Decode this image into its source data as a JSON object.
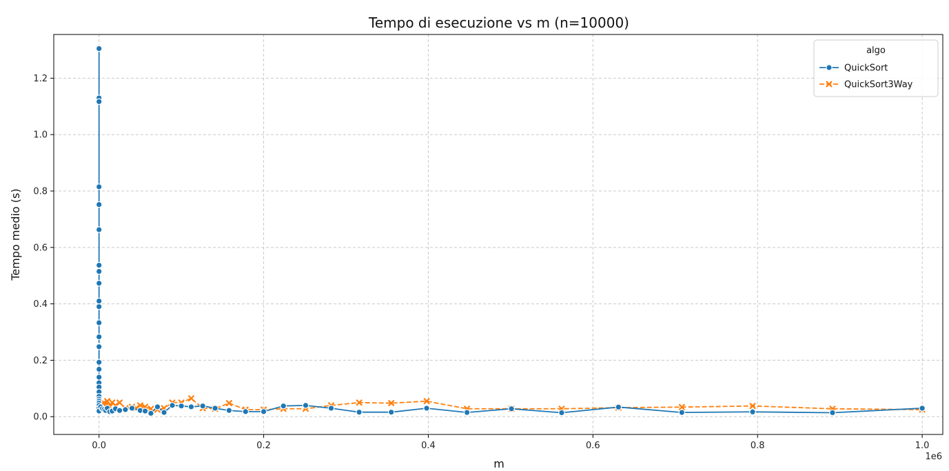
{
  "chart_data": {
    "type": "line",
    "title": "Tempo di esecuzione vs m (n=10000)",
    "xlabel": "m",
    "ylabel": "Tempo medio (s)",
    "x_offset_label": "1e6",
    "xlim": [
      -0.055,
      1.025
    ],
    "ylim": [
      -0.063,
      1.355
    ],
    "xticks": [
      0.0,
      0.2,
      0.4,
      0.6,
      0.8,
      1.0
    ],
    "xtick_labels": [
      "0.0",
      "0.2",
      "0.4",
      "0.6",
      "0.8",
      "1.0"
    ],
    "yticks": [
      0.0,
      0.2,
      0.4,
      0.6,
      0.8,
      1.0,
      1.2
    ],
    "ytick_labels": [
      "0.0",
      "0.2",
      "0.4",
      "0.6",
      "0.8",
      "1.0",
      "1.2"
    ],
    "grid": true,
    "legend": {
      "title": "algo",
      "position": "top-right"
    },
    "series": [
      {
        "name": "QuickSort",
        "color": "#1f77b4",
        "marker": "circle",
        "linestyle": "solid",
        "x": [
          0,
          0,
          0,
          0,
          0,
          0,
          0,
          0,
          0,
          0,
          0,
          0,
          0,
          0,
          0,
          0,
          0,
          0,
          0,
          0,
          0,
          0,
          0,
          0,
          0,
          0,
          0,
          0,
          0.002,
          0.004,
          0.006,
          0.008,
          0.01,
          0.013,
          0.016,
          0.02,
          0.025,
          0.032,
          0.04,
          0.05,
          0.056,
          0.063,
          0.071,
          0.079,
          0.089,
          0.1,
          0.112,
          0.126,
          0.141,
          0.158,
          0.178,
          0.2,
          0.224,
          0.251,
          0.282,
          0.316,
          0.355,
          0.398,
          0.447,
          0.501,
          0.562,
          0.631,
          0.708,
          0.794,
          0.891,
          1.0
        ],
        "y": [
          1.305,
          1.13,
          1.117,
          0.815,
          0.752,
          0.663,
          0.537,
          0.515,
          0.473,
          0.41,
          0.39,
          0.333,
          0.283,
          0.25,
          0.248,
          0.193,
          0.168,
          0.14,
          0.12,
          0.105,
          0.088,
          0.072,
          0.062,
          0.055,
          0.048,
          0.04,
          0.03,
          0.02,
          0.035,
          0.028,
          0.025,
          0.022,
          0.03,
          0.018,
          0.02,
          0.028,
          0.022,
          0.025,
          0.03,
          0.022,
          0.02,
          0.012,
          0.035,
          0.015,
          0.04,
          0.038,
          0.035,
          0.038,
          0.03,
          0.022,
          0.018,
          0.018,
          0.038,
          0.04,
          0.03,
          0.016,
          0.016,
          0.03,
          0.015,
          0.028,
          0.014,
          0.034,
          0.015,
          0.017,
          0.014,
          0.03
        ]
      },
      {
        "name": "QuickSort3Way",
        "color": "#ff7f0e",
        "marker": "x",
        "linestyle": "dashed",
        "x": [
          0,
          0.002,
          0.004,
          0.006,
          0.008,
          0.01,
          0.013,
          0.016,
          0.02,
          0.025,
          0.032,
          0.04,
          0.045,
          0.05,
          0.056,
          0.063,
          0.071,
          0.079,
          0.089,
          0.1,
          0.112,
          0.126,
          0.141,
          0.158,
          0.178,
          0.2,
          0.224,
          0.251,
          0.282,
          0.316,
          0.355,
          0.398,
          0.447,
          0.501,
          0.562,
          0.631,
          0.708,
          0.794,
          0.891,
          1.0
        ],
        "y": [
          0.025,
          0.045,
          0.03,
          0.05,
          0.04,
          0.055,
          0.035,
          0.05,
          0.04,
          0.05,
          0.03,
          0.035,
          0.03,
          0.04,
          0.035,
          0.028,
          0.025,
          0.03,
          0.05,
          0.05,
          0.065,
          0.03,
          0.028,
          0.048,
          0.025,
          0.025,
          0.028,
          0.028,
          0.04,
          0.05,
          0.048,
          0.055,
          0.028,
          0.028,
          0.028,
          0.032,
          0.034,
          0.038,
          0.028,
          0.025
        ]
      }
    ]
  }
}
